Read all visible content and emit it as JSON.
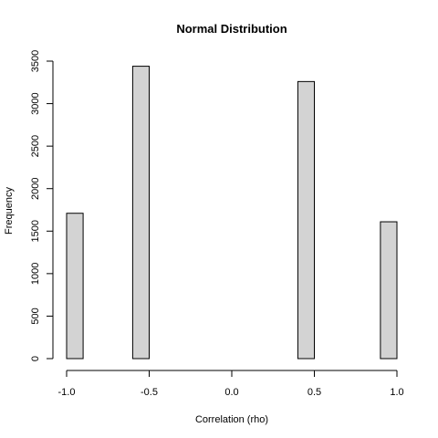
{
  "chart_data": {
    "type": "bar",
    "title": "Normal Distribution",
    "xlabel": "Correlation (rho)",
    "ylabel": "Frequency",
    "xlim": [
      -1.0,
      1.0
    ],
    "ylim": [
      0,
      3500
    ],
    "x_ticks": [
      -1.0,
      -0.5,
      0.0,
      0.5,
      1.0
    ],
    "x_tick_labels": [
      "-1.0",
      "-0.5",
      "0.0",
      "0.5",
      "1.0"
    ],
    "y_ticks": [
      0,
      500,
      1000,
      1500,
      2000,
      2500,
      3000,
      3500
    ],
    "y_tick_labels": [
      "0",
      "500",
      "1000",
      "1500",
      "2000",
      "2500",
      "3000",
      "3500"
    ],
    "bin_width": 0.1,
    "bins": [
      {
        "x0": -1.0,
        "x1": -0.9,
        "count": 1710
      },
      {
        "x0": -0.6,
        "x1": -0.5,
        "count": 3440
      },
      {
        "x0": 0.4,
        "x1": 0.5,
        "count": 3260
      },
      {
        "x0": 0.9,
        "x1": 1.0,
        "count": 1610
      }
    ],
    "bar_color": "#d3d3d3",
    "grid": false,
    "legend": "none"
  }
}
